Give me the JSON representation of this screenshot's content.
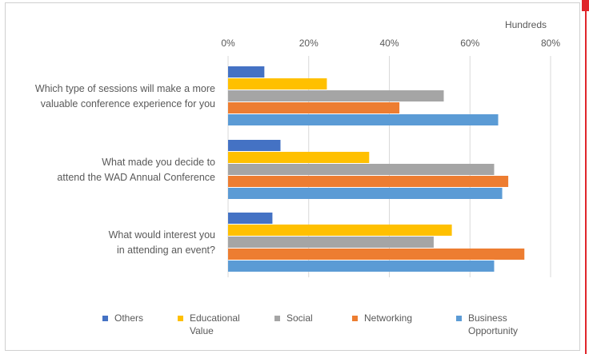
{
  "chart_data": {
    "type": "bar",
    "orientation": "horizontal",
    "title": "",
    "xlabel": "",
    "ylabel": "",
    "axis_unit_label": "Hundreds",
    "xlim": [
      0,
      0.8
    ],
    "x_ticks": [
      "0%",
      "20%",
      "40%",
      "60%",
      "80%"
    ],
    "grid": true,
    "legend_position": "bottom",
    "categories": [
      "Which type of sessions will make a more valuable conference experience for you",
      "What made you decide to attend the WAD Annual Conference",
      "What would interest you in attending an event?"
    ],
    "category_lines": [
      [
        "Which type of sessions will make a more",
        "valuable conference experience for you"
      ],
      [
        "What made you decide to",
        "attend the WAD Annual Conference"
      ],
      [
        "What would interest you",
        "in attending an event?"
      ]
    ],
    "series": [
      {
        "name": "Others",
        "legend_lines": [
          "Others"
        ],
        "color": "#4472c4",
        "values": [
          0.09,
          0.13,
          0.11
        ]
      },
      {
        "name": "Educational Value",
        "legend_lines": [
          "Educational",
          "Value"
        ],
        "color": "#ffc000",
        "values": [
          0.245,
          0.35,
          0.555
        ]
      },
      {
        "name": "Social",
        "legend_lines": [
          "Social"
        ],
        "color": "#a5a5a5",
        "values": [
          0.535,
          0.66,
          0.51
        ]
      },
      {
        "name": "Networking",
        "legend_lines": [
          "Networking"
        ],
        "color": "#ed7d31",
        "values": [
          0.425,
          0.695,
          0.735
        ]
      },
      {
        "name": "Business Opportunity",
        "legend_lines": [
          "Business",
          "Opportunity"
        ],
        "color": "#5b9bd5",
        "values": [
          0.67,
          0.68,
          0.66
        ]
      }
    ]
  }
}
